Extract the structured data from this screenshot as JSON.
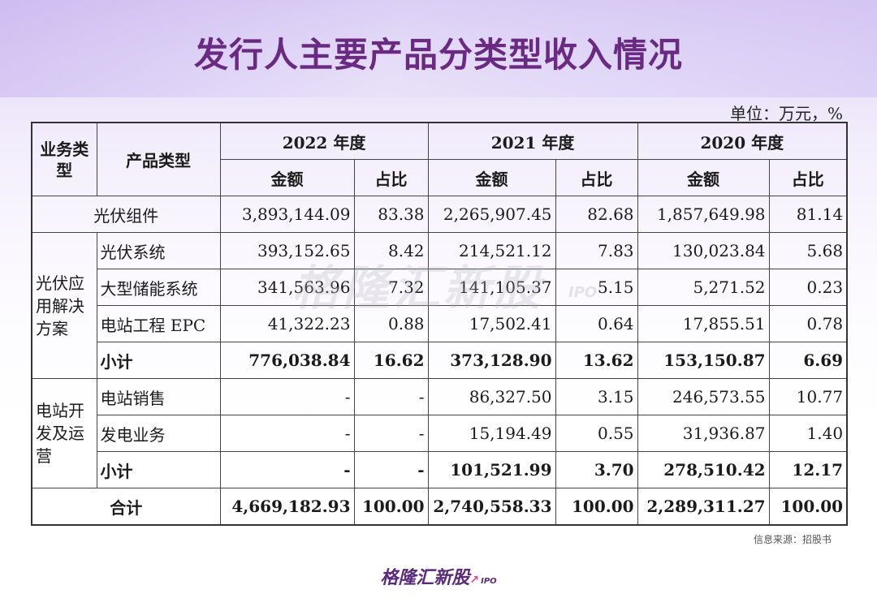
{
  "title": "发行人主要产品分类型收入情况",
  "unit": "单位：万元，%",
  "header": {
    "business_type": "业务类型",
    "product_type": "产品类型",
    "years": [
      "2022 年度",
      "2021 年度",
      "2020 年度"
    ],
    "amount": "金额",
    "ratio": "占比"
  },
  "rows": {
    "pv_module": {
      "label": "光伏组件",
      "v": [
        "3,893,144.09",
        "83.38",
        "2,265,907.45",
        "82.68",
        "1,857,649.98",
        "81.14"
      ]
    },
    "group1": "光伏应用解决方案",
    "pv_system": {
      "label": "光伏系统",
      "v": [
        "393,152.65",
        "8.42",
        "214,521.12",
        "7.83",
        "130,023.84",
        "5.68"
      ]
    },
    "storage": {
      "label": "大型储能系统",
      "v": [
        "341,563.96",
        "7.32",
        "141,105.37",
        "5.15",
        "5,271.52",
        "0.23"
      ]
    },
    "epc": {
      "label": "电站工程 EPC",
      "v": [
        "41,322.23",
        "0.88",
        "17,502.41",
        "0.64",
        "17,855.51",
        "0.78"
      ]
    },
    "subtotal1": {
      "label": "小计",
      "v": [
        "776,038.84",
        "16.62",
        "373,128.90",
        "13.62",
        "153,150.87",
        "6.69"
      ]
    },
    "group2": "电站开发及运营",
    "station_sales": {
      "label": "电站销售",
      "v": [
        "-",
        "-",
        "86,327.50",
        "3.15",
        "246,573.55",
        "10.77"
      ]
    },
    "power_gen": {
      "label": "发电业务",
      "v": [
        "-",
        "-",
        "15,194.49",
        "0.55",
        "31,936.87",
        "1.40"
      ]
    },
    "subtotal2": {
      "label": "小计",
      "v": [
        "-",
        "-",
        "101,521.99",
        "3.70",
        "278,510.42",
        "12.17"
      ]
    },
    "total": {
      "label": "合计",
      "v": [
        "4,669,182.93",
        "100.00",
        "2,740,558.33",
        "100.00",
        "2,289,311.27",
        "100.00"
      ]
    }
  },
  "watermark": "格隆汇新股",
  "watermark_ipo": "IPO",
  "source": "信息来源：招股书",
  "brand": "格隆汇新股",
  "brand_ipo": "IPO"
}
